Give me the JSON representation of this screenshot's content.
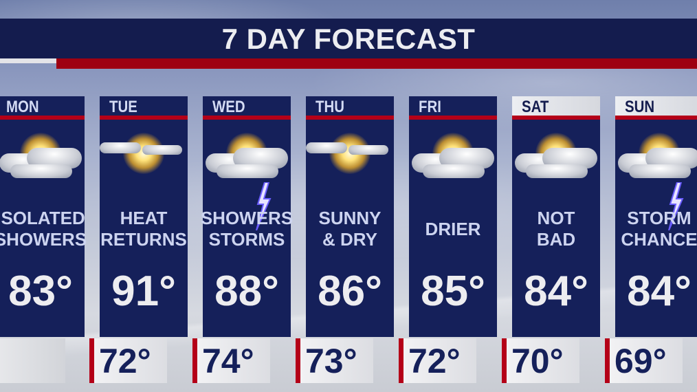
{
  "header": {
    "title": "7 DAY FORECAST"
  },
  "colors": {
    "navy": "#15205a",
    "red": "#b40018",
    "title_bar": "#141c4e"
  },
  "days": [
    {
      "day": "MON",
      "icon": "partly-cloudy-icon",
      "desc": [
        "ISOLATED",
        "SHOWERS"
      ],
      "high": "83°",
      "low": null,
      "weekend": false
    },
    {
      "day": "TUE",
      "icon": "sunny-cloud-icon",
      "desc": [
        "HEAT",
        "RETURNS"
      ],
      "high": "91°",
      "low": "72°",
      "weekend": false
    },
    {
      "day": "WED",
      "icon": "thunderstorm-icon",
      "desc": [
        "SHOWERS",
        "STORMS"
      ],
      "high": "88°",
      "low": "74°",
      "weekend": false
    },
    {
      "day": "THU",
      "icon": "sunny-cloud-icon",
      "desc": [
        "SUNNY",
        "& DRY"
      ],
      "high": "86°",
      "low": "73°",
      "weekend": false
    },
    {
      "day": "FRI",
      "icon": "partly-cloudy-icon",
      "desc": [
        "DRIER"
      ],
      "high": "85°",
      "low": "72°",
      "weekend": false
    },
    {
      "day": "SAT",
      "icon": "partly-cloudy-icon",
      "desc": [
        "NOT",
        "BAD"
      ],
      "high": "84°",
      "low": "70°",
      "weekend": true
    },
    {
      "day": "SUN",
      "icon": "thunderstorm-icon",
      "desc": [
        "STORM",
        "CHANCE"
      ],
      "high": "84°",
      "low": "69°",
      "weekend": true
    }
  ]
}
